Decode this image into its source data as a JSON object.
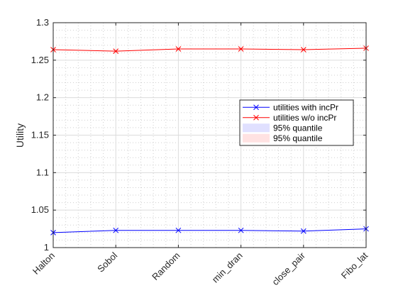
{
  "chart_data": {
    "type": "line",
    "title": "",
    "xlabel": "",
    "ylabel": "Utility",
    "categories": [
      "Halton",
      "Sobol",
      "Random",
      "min_dran",
      "close_pair",
      "Fibo_lat"
    ],
    "ylim": [
      1,
      1.3
    ],
    "yticks": [
      1,
      1.05,
      1.1,
      1.15,
      1.2,
      1.25,
      1.3
    ],
    "ytick_labels": [
      "1",
      "1.05",
      "1.1",
      "1.15",
      "1.2",
      "1.25",
      "1.3"
    ],
    "grid": true,
    "minor_grid": true,
    "legend_position": "right",
    "series": [
      {
        "name": "utilities with incPr",
        "values": [
          1.02,
          1.023,
          1.023,
          1.023,
          1.022,
          1.025
        ],
        "color": "#0000ff",
        "marker": "x"
      },
      {
        "name": "utilities w/o incPr",
        "values": [
          1.264,
          1.262,
          1.265,
          1.265,
          1.264,
          1.266
        ],
        "color": "#ff0000",
        "marker": "x"
      }
    ],
    "bands": [
      {
        "name": "95% quantile",
        "color": "#e0e0ff"
      },
      {
        "name": "95% quantile",
        "color": "#ffe2e2"
      }
    ]
  }
}
